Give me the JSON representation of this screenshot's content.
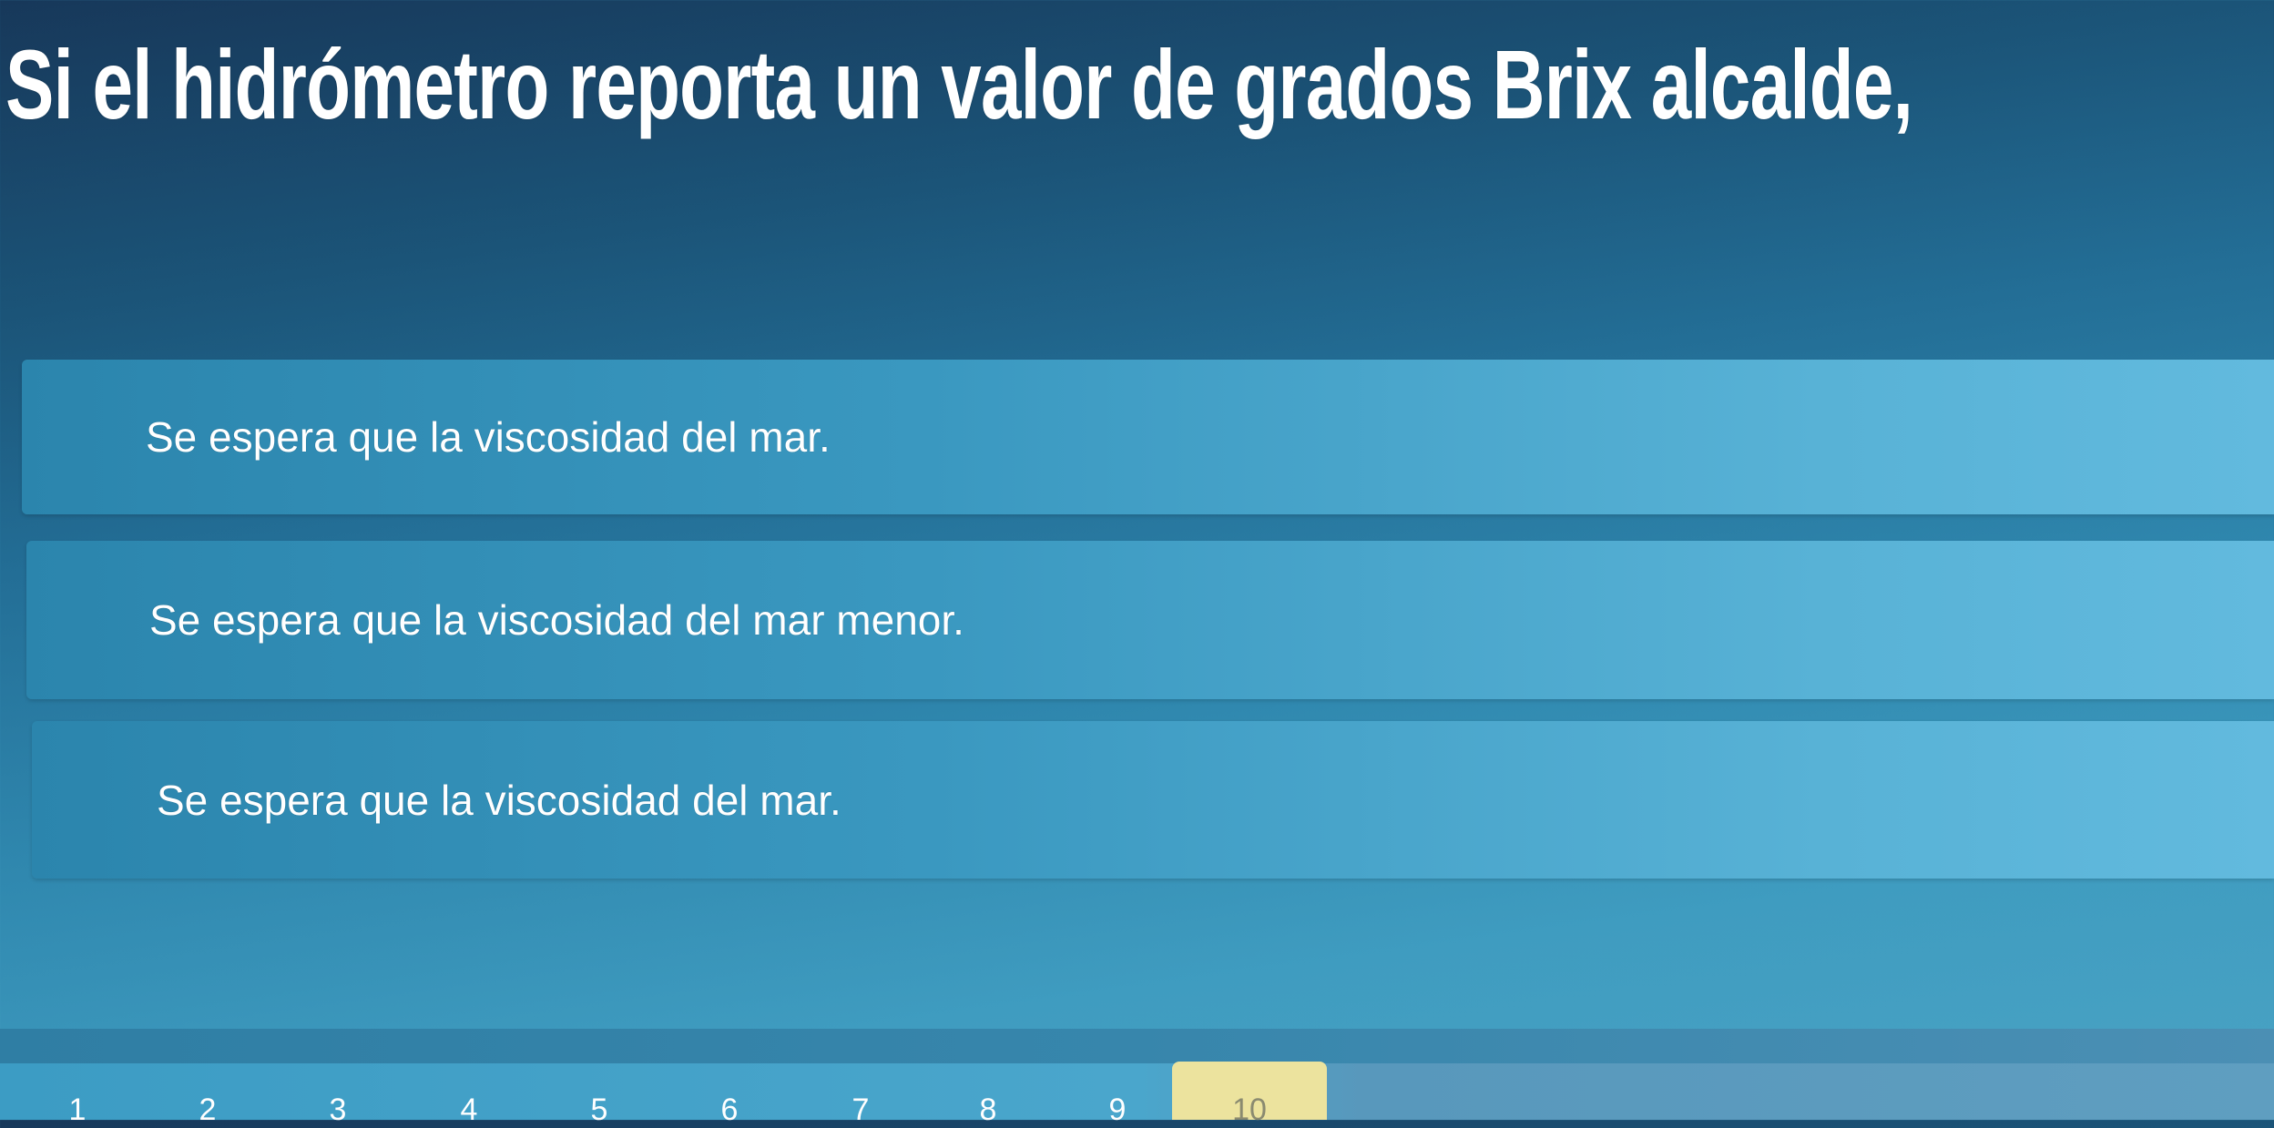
{
  "question": {
    "title": "Si el hidrómetro reporta un valor de grados Brix alcalde,"
  },
  "options": [
    {
      "label": "Se espera que la viscosidad del mar."
    },
    {
      "label": "Se espera que la viscosidad del mar menor."
    },
    {
      "label": "Se espera que la viscosidad del mar."
    }
  ],
  "pagination": {
    "pages": [
      "1",
      "2",
      "3",
      "4",
      "5",
      "6",
      "7",
      "8",
      "9",
      "10"
    ],
    "current": "10",
    "active_color": "#ece39e"
  }
}
